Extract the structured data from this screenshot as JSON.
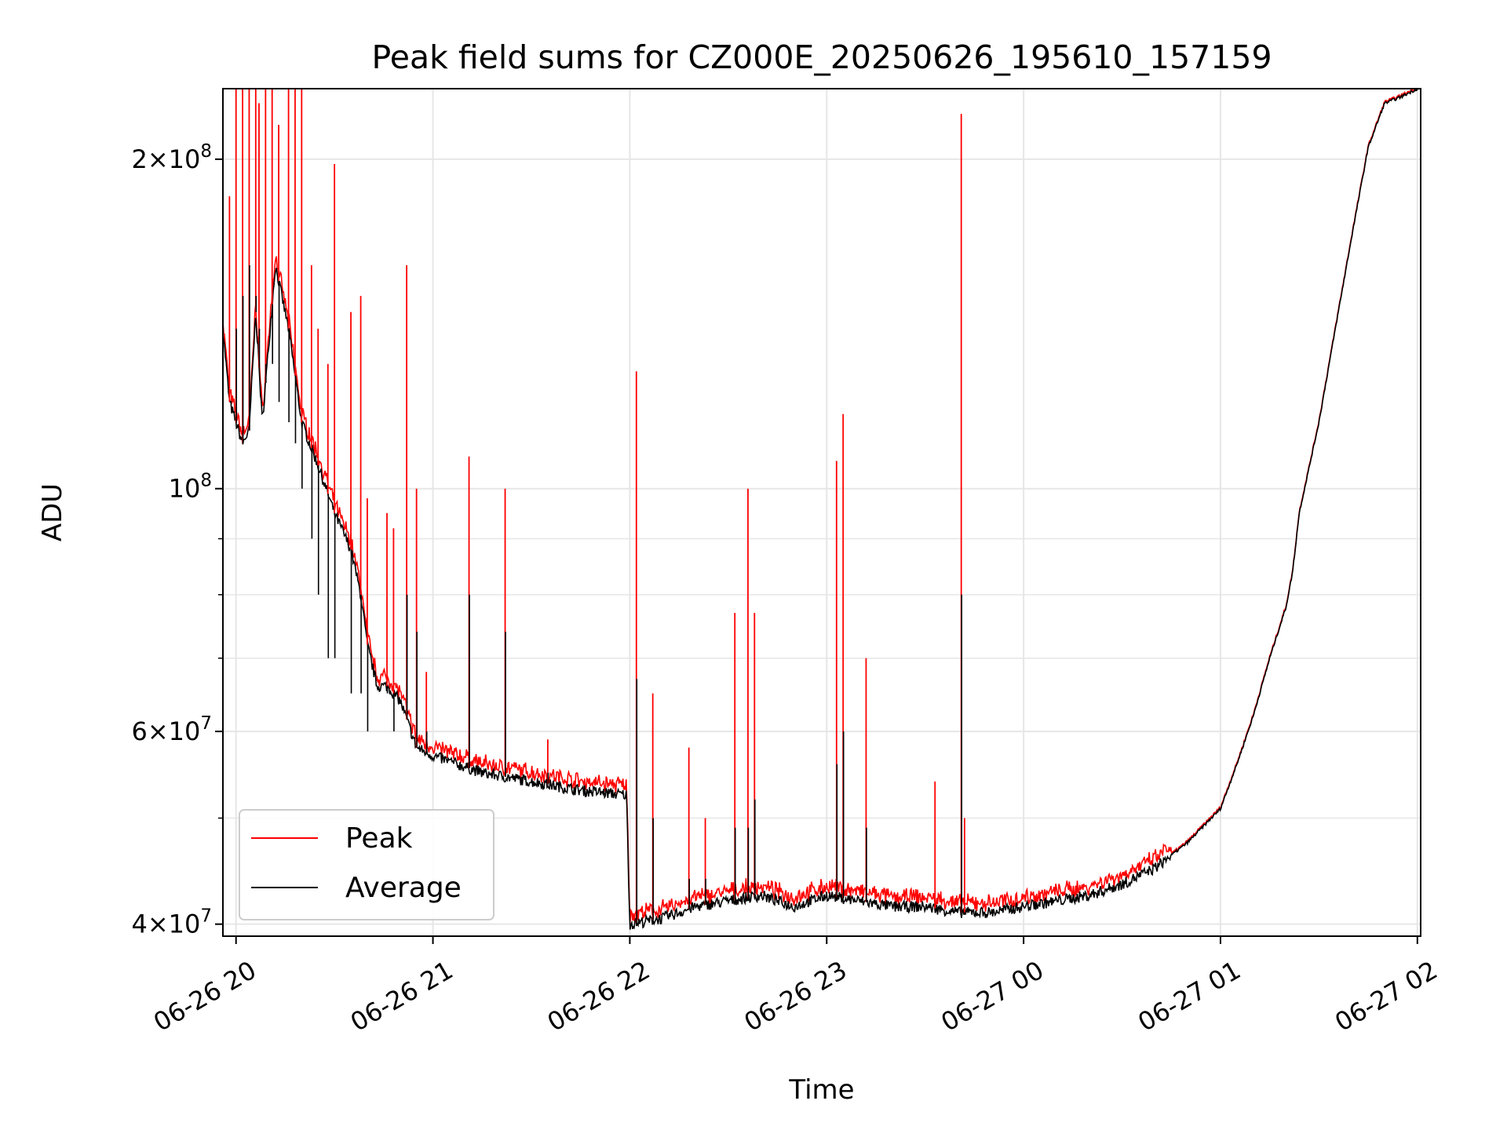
{
  "chart_data": {
    "type": "line",
    "title": "Peak field sums for CZ000E_20250626_195610_157159",
    "xlabel": "Time",
    "ylabel": "ADU",
    "yscale": "log",
    "xlim": [
      "2025-06-26 19:56",
      "2025-06-27 02:01"
    ],
    "ylim": [
      39000000,
      232000000
    ],
    "x_tick_labels": [
      "06-26 20",
      "06-26 21",
      "06-26 22",
      "06-26 23",
      "06-27 00",
      "06-27 01",
      "06-27 02"
    ],
    "x_ticks": [
      "2025-06-26 20:00",
      "2025-06-26 21:00",
      "2025-06-26 22:00",
      "2025-06-26 23:00",
      "2025-06-27 00:00",
      "2025-06-27 01:00",
      "2025-06-27 02:00"
    ],
    "y_tick_labels": [
      {
        "value": 40000000,
        "mant": "4",
        "exp": "7"
      },
      {
        "value": 60000000,
        "mant": "6",
        "exp": "7"
      },
      {
        "value": 100000000,
        "mant": "",
        "exp": "8"
      },
      {
        "value": 200000000,
        "mant": "2",
        "exp": "8"
      }
    ],
    "y_minor_ticks": [
      50000000,
      70000000,
      80000000,
      90000000
    ],
    "grid": true,
    "legend_position": "lower-left",
    "colors": {
      "peak": "#ff0000",
      "average": "#000000",
      "grid": "#e6e6e6"
    },
    "baseline": {
      "x": [
        "2025-06-26 19:56",
        "2025-06-26 19:58",
        "2025-06-26 20:02",
        "2025-06-26 20:04",
        "2025-06-26 20:06",
        "2025-06-26 20:08",
        "2025-06-26 20:12",
        "2025-06-26 20:16",
        "2025-06-26 20:20",
        "2025-06-26 20:25",
        "2025-06-26 20:30",
        "2025-06-26 20:35",
        "2025-06-26 20:38",
        "2025-06-26 20:40",
        "2025-06-26 20:43",
        "2025-06-26 20:46",
        "2025-06-26 20:50",
        "2025-06-26 20:55",
        "2025-06-26 21:00",
        "2025-06-26 21:15",
        "2025-06-26 21:30",
        "2025-06-26 21:45",
        "2025-06-26 21:59",
        "2025-06-26 22:00",
        "2025-06-26 22:10",
        "2025-06-26 22:20",
        "2025-06-26 22:30",
        "2025-06-26 22:40",
        "2025-06-26 22:50",
        "2025-06-26 23:00",
        "2025-06-26 23:10",
        "2025-06-26 23:20",
        "2025-06-26 23:30",
        "2025-06-26 23:40",
        "2025-06-26 23:50",
        "2025-06-27 00:00",
        "2025-06-27 00:10",
        "2025-06-27 00:20",
        "2025-06-27 00:30",
        "2025-06-27 00:40",
        "2025-06-27 00:50",
        "2025-06-27 01:00",
        "2025-06-27 01:05",
        "2025-06-27 01:10",
        "2025-06-27 01:15",
        "2025-06-27 01:20",
        "2025-06-27 01:22",
        "2025-06-27 01:24",
        "2025-06-27 01:30",
        "2025-06-27 01:35",
        "2025-06-27 01:40",
        "2025-06-27 01:45",
        "2025-06-27 01:50",
        "2025-06-27 01:55",
        "2025-06-27 02:00",
        "2025-06-27 02:01"
      ],
      "y": [
        140000000,
        120000000,
        110000000,
        113000000,
        145000000,
        115000000,
        160000000,
        140000000,
        115000000,
        105000000,
        95000000,
        88000000,
        80000000,
        72000000,
        66000000,
        66000000,
        64000000,
        58000000,
        57000000,
        55000000,
        54000000,
        53000000,
        52500000,
        40000000,
        40500000,
        41500000,
        42000000,
        42500000,
        41500000,
        42500000,
        42000000,
        41500000,
        41500000,
        41000000,
        41000000,
        41500000,
        42000000,
        42500000,
        43500000,
        45000000,
        47500000,
        51000000,
        56000000,
        62000000,
        70000000,
        78000000,
        84000000,
        95000000,
        115000000,
        140000000,
        170000000,
        205000000,
        225000000,
        228000000,
        232000000,
        232000000
      ]
    },
    "spikes": {
      "x": [
        "2025-06-26 19:56",
        "2025-06-26 19:58",
        "2025-06-26 20:00",
        "2025-06-26 20:02",
        "2025-06-26 20:04",
        "2025-06-26 20:06",
        "2025-06-26 20:07",
        "2025-06-26 20:09",
        "2025-06-26 20:11",
        "2025-06-26 20:13",
        "2025-06-26 20:16",
        "2025-06-26 20:18",
        "2025-06-26 20:20",
        "2025-06-26 20:23",
        "2025-06-26 20:25",
        "2025-06-26 20:28",
        "2025-06-26 20:30",
        "2025-06-26 20:35",
        "2025-06-26 20:38",
        "2025-06-26 20:40",
        "2025-06-26 20:46",
        "2025-06-26 20:48",
        "2025-06-26 20:52",
        "2025-06-26 20:55",
        "2025-06-26 20:58",
        "2025-06-26 21:11",
        "2025-06-26 21:22",
        "2025-06-26 21:35",
        "2025-06-26 22:02",
        "2025-06-26 22:07",
        "2025-06-26 22:18",
        "2025-06-26 22:23",
        "2025-06-26 22:32",
        "2025-06-26 22:36",
        "2025-06-26 22:38",
        "2025-06-26 23:03",
        "2025-06-26 23:05",
        "2025-06-26 23:12",
        "2025-06-26 23:33",
        "2025-06-26 23:41",
        "2025-06-26 23:42"
      ],
      "peak": [
        220000000,
        185000000,
        232000000,
        232000000,
        232000000,
        232000000,
        225000000,
        232000000,
        232000000,
        215000000,
        232000000,
        232000000,
        232000000,
        160000000,
        140000000,
        130000000,
        198000000,
        145000000,
        150000000,
        98000000,
        95000000,
        92000000,
        160000000,
        100000000,
        68000000,
        107000000,
        100000000,
        59000000,
        128000000,
        65000000,
        58000000,
        50000000,
        77000000,
        100000000,
        77000000,
        106000000,
        117000000,
        70000000,
        54000000,
        220000000,
        50000000
      ],
      "average": [
        140000000,
        120000000,
        140000000,
        150000000,
        160000000,
        150000000,
        140000000,
        130000000,
        130000000,
        120000000,
        115000000,
        110000000,
        100000000,
        90000000,
        80000000,
        70000000,
        70000000,
        65000000,
        65000000,
        60000000,
        65000000,
        60000000,
        80000000,
        74000000,
        60000000,
        80000000,
        74000000,
        55000000,
        67000000,
        50000000,
        44000000,
        44000000,
        49000000,
        49000000,
        52000000,
        56000000,
        60000000,
        49000000,
        41000000,
        80000000,
        41000000
      ]
    },
    "series": [
      {
        "name": "Peak",
        "color": "#ff0000"
      },
      {
        "name": "Average",
        "color": "#000000"
      }
    ]
  }
}
